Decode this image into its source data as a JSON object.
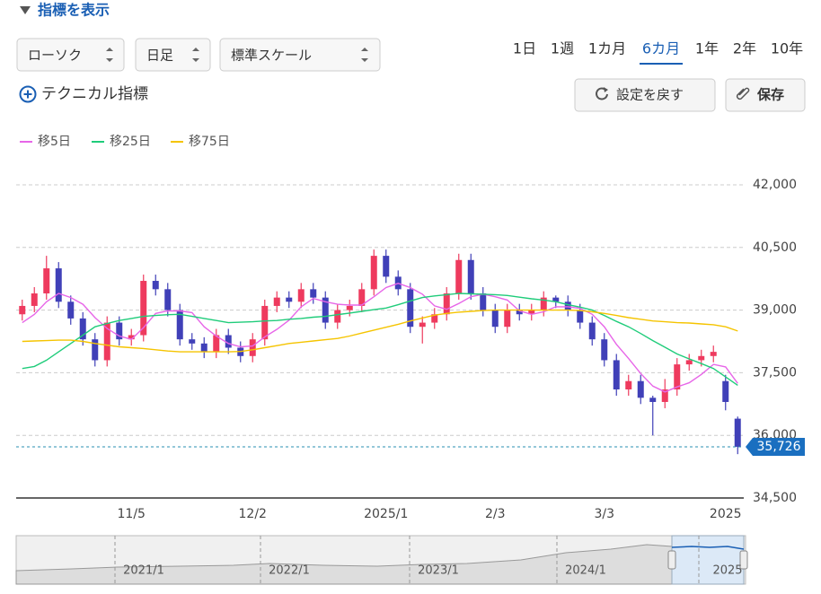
{
  "ui": {
    "toggle": "指標を表示",
    "chart_style": "ローソク",
    "interval": "日足",
    "scale": "標準スケール",
    "ranges": [
      "1日",
      "1週",
      "1カ月",
      "6カ月",
      "1年",
      "2年",
      "10年"
    ],
    "selected_range": 3,
    "technical": "テクニカル指標",
    "reset": "設定を戻す",
    "save": "保存"
  },
  "chart_data": {
    "type": "candlestick",
    "categories": [
      null,
      null,
      null,
      null,
      null,
      null,
      null,
      null,
      null,
      "11/5",
      null,
      null,
      null,
      null,
      null,
      null,
      null,
      null,
      null,
      "12/2",
      null,
      null,
      null,
      null,
      null,
      null,
      null,
      null,
      null,
      null,
      "2025/1",
      null,
      null,
      null,
      null,
      null,
      null,
      null,
      null,
      "2/3",
      null,
      null,
      null,
      null,
      null,
      null,
      null,
      null,
      "3/3",
      null,
      null,
      null,
      null,
      null,
      null,
      null,
      null,
      null,
      "2025",
      null
    ],
    "open": [
      38900,
      39100,
      39400,
      40000,
      39200,
      38800,
      38300,
      37800,
      38700,
      38300,
      38400,
      39700,
      39500,
      39000,
      38300,
      38200,
      38000,
      38400,
      38100,
      37900,
      38300,
      39100,
      39300,
      39200,
      39500,
      39300,
      38700,
      39000,
      39100,
      39500,
      40300,
      39800,
      39500,
      38600,
      38700,
      38900,
      39400,
      40200,
      39400,
      39000,
      38600,
      39000,
      38900,
      39000,
      39300,
      39200,
      39000,
      38700,
      38300,
      37800,
      37100,
      37300,
      36900,
      36800,
      37100,
      37700,
      37800,
      37900,
      37300,
      36400
    ],
    "high": [
      39250,
      39550,
      40300,
      40150,
      39350,
      38950,
      38450,
      38850,
      38850,
      38550,
      39850,
      39850,
      39650,
      39150,
      38450,
      38350,
      38550,
      38550,
      38250,
      38450,
      39250,
      39450,
      39450,
      39650,
      39650,
      39450,
      39150,
      39250,
      39650,
      40450,
      40450,
      39950,
      39650,
      38850,
      39050,
      39550,
      40350,
      40350,
      39550,
      39150,
      39150,
      39150,
      39150,
      39450,
      39350,
      39350,
      39150,
      38850,
      38450,
      37950,
      37450,
      37450,
      36950,
      37350,
      37850,
      37950,
      38050,
      38150,
      37450,
      36450
    ],
    "low": [
      38750,
      38950,
      39250,
      39050,
      38650,
      38150,
      37650,
      37650,
      38150,
      38150,
      38250,
      39350,
      38850,
      38150,
      38050,
      37850,
      37850,
      37950,
      37750,
      37750,
      38150,
      38950,
      39050,
      39050,
      39150,
      38550,
      38550,
      38850,
      38950,
      39350,
      39650,
      39350,
      38450,
      38200,
      38550,
      38750,
      39250,
      39250,
      38850,
      38450,
      38450,
      38750,
      38750,
      38850,
      39050,
      38850,
      38550,
      38150,
      37650,
      36950,
      36950,
      36750,
      36000,
      36650,
      36950,
      37550,
      37650,
      37750,
      36600,
      35550
    ],
    "close": [
      39100,
      39400,
      40000,
      39200,
      38800,
      38300,
      37800,
      38700,
      38300,
      38400,
      39700,
      39500,
      39000,
      38300,
      38200,
      38000,
      38400,
      38100,
      37900,
      38300,
      39100,
      39300,
      39200,
      39500,
      39300,
      38700,
      39000,
      39100,
      39500,
      40300,
      39800,
      39500,
      38600,
      38700,
      38900,
      39400,
      40200,
      39400,
      39000,
      38600,
      39000,
      38900,
      39000,
      39300,
      39200,
      39000,
      38700,
      38300,
      37800,
      37100,
      37300,
      36900,
      36800,
      37100,
      37700,
      37800,
      37900,
      38000,
      36800,
      35726
    ],
    "up_color": "#ee3a5e",
    "down_color": "#4040b8",
    "series": [
      {
        "name": "移5日",
        "color": "#e766e8",
        "values": [
          38700,
          38900,
          39200,
          39400,
          39300,
          39140,
          38820,
          38560,
          38380,
          38300,
          38580,
          38920,
          38980,
          38980,
          38940,
          38600,
          38380,
          38200,
          38120,
          38140,
          38360,
          38540,
          38760,
          39080,
          39280,
          39200,
          39140,
          39120,
          39120,
          39320,
          39540,
          39640,
          39540,
          39380,
          39100,
          39020,
          39160,
          39320,
          39380,
          39320,
          39240,
          38980,
          38900,
          38960,
          39080,
          39080,
          39040,
          38900,
          38600,
          38180,
          37840,
          37480,
          37180,
          37040,
          37160,
          37260,
          37460,
          37700,
          37640,
          37245.2
        ]
      },
      {
        "name": "移25日",
        "color": "#1fcc7a",
        "values": [
          37600,
          37650,
          37800,
          38000,
          38200,
          38400,
          38600,
          38680,
          38750,
          38800,
          38850,
          38870,
          38890,
          38900,
          38850,
          38800,
          38750,
          38700,
          38710,
          38720,
          38740,
          38750,
          38780,
          38800,
          38830,
          38850,
          38890,
          38930,
          38970,
          39010,
          39050,
          39130,
          39220,
          39300,
          39340,
          39370,
          39400,
          39390,
          39380,
          39370,
          39350,
          39310,
          39270,
          39240,
          39200,
          39130,
          39070,
          39000,
          38870,
          38730,
          38600,
          38440,
          38270,
          38110,
          37950,
          37830,
          37720,
          37600,
          37400,
          37200
        ]
      },
      {
        "name": "移75日",
        "color": "#f5c400",
        "values": [
          38250,
          38260,
          38270,
          38280,
          38280,
          38250,
          38200,
          38160,
          38120,
          38100,
          38080,
          38050,
          38020,
          38000,
          38000,
          38000,
          38000,
          38000,
          38010,
          38050,
          38100,
          38150,
          38200,
          38230,
          38260,
          38290,
          38320,
          38380,
          38450,
          38520,
          38590,
          38660,
          38740,
          38810,
          38880,
          38920,
          38950,
          38970,
          38990,
          39000,
          39000,
          39000,
          39000,
          39000,
          39000,
          39000,
          38990,
          38960,
          38920,
          38870,
          38820,
          38780,
          38740,
          38720,
          38700,
          38690,
          38670,
          38650,
          38600,
          38500
        ]
      }
    ],
    "ylim": [
      34500,
      42000
    ],
    "yticks": [
      {
        "value": 42000,
        "label": "42,000"
      },
      {
        "value": 40500,
        "label": "40,500"
      },
      {
        "value": 39000,
        "label": "39,000"
      },
      {
        "value": 37500,
        "label": "37,500"
      },
      {
        "value": 36000,
        "label": "36,000"
      },
      {
        "value": 34500,
        "label": "34,500"
      }
    ],
    "grid": true,
    "last_price": {
      "value": 35726,
      "label": "35,726"
    },
    "navigator_labels": [
      "2021/1",
      "2022/1",
      "2023/1",
      "2024/1",
      "2025"
    ]
  }
}
